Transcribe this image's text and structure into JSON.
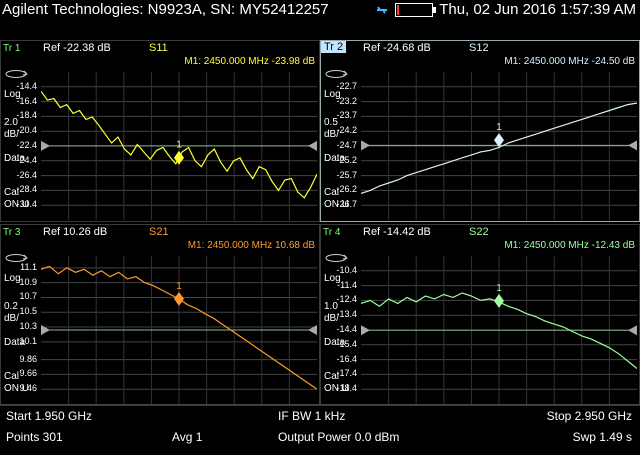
{
  "header": {
    "title": "Agilent Technologies: N9923A, SN: MY52412257",
    "datetime": "Thu, 02 Jun 2016 1:57:39 AM",
    "battery_level": 0.05
  },
  "traces": [
    {
      "id": "tr1",
      "label": "Tr 1",
      "ref": "Ref -22.38 dB",
      "meas": "S11",
      "color": "#ffff33",
      "marker": "M1: 2450.000 MHz  -23.98 dB",
      "scale": [
        "Log",
        "2.0",
        "dB/",
        "Data"
      ],
      "cal": [
        "Cal",
        "ON U"
      ],
      "yticks": [
        "-14.4",
        "-16.4",
        "-18.4",
        "-20.4",
        "-22.4",
        "-24.4",
        "-26.4",
        "-28.4",
        "-30.4"
      ],
      "ymin": -32.4,
      "ymax": -12.4,
      "ref_value": -22.38,
      "marker_value": -23.98,
      "points": [
        -15.0,
        -16.2,
        -16.0,
        -17.2,
        -16.8,
        -18.0,
        -17.6,
        -18.8,
        -18.5,
        -19.6,
        -20.8,
        -22.0,
        -21.2,
        -22.8,
        -23.6,
        -22.2,
        -23.2,
        -24.2,
        -23.0,
        -22.6,
        -23.8,
        -24.8,
        -23.2,
        -22.6,
        -24.4,
        -25.2,
        -23.6,
        -22.8,
        -24.6,
        -25.8,
        -24.4,
        -24.0,
        -25.6,
        -26.8,
        -25.2,
        -25.6,
        -27.2,
        -28.4,
        -27.0,
        -26.8,
        -28.6,
        -29.4,
        -28.0,
        -26.2
      ]
    },
    {
      "id": "tr2",
      "label": "Tr 2",
      "ref": "Ref -24.68 dB",
      "meas": "S12",
      "color": "#d8f0ff",
      "marker": "M1: 2450.000 MHz  -24.50 dB",
      "scale": [
        "Log",
        "0.5",
        "dB/",
        "Data"
      ],
      "cal": [
        "Cal",
        "ON U"
      ],
      "yticks": [
        "-22.7",
        "-23.2",
        "-23.7",
        "-24.2",
        "-24.7",
        "-25.2",
        "-25.7",
        "-26.2",
        "-26.7"
      ],
      "ymin": -27.2,
      "ymax": -22.2,
      "ref_value": -24.68,
      "marker_value": -24.5,
      "points": [
        -26.3,
        -26.2,
        -26.05,
        -25.95,
        -25.85,
        -25.7,
        -25.6,
        -25.5,
        -25.4,
        -25.3,
        -25.2,
        -25.1,
        -25.0,
        -24.9,
        -24.85,
        -24.75,
        -24.6,
        -24.5,
        -24.4,
        -24.3,
        -24.2,
        -24.1,
        -24.0,
        -23.9,
        -23.8,
        -23.7,
        -23.6,
        -23.5,
        -23.4,
        -23.3,
        -23.25
      ]
    },
    {
      "id": "tr3",
      "label": "Tr 3",
      "ref": "Ref 10.26 dB",
      "meas": "S21",
      "color": "#ff9a2a",
      "marker": "M1: 2450.000 MHz  10.68 dB",
      "scale": [
        "Log",
        "0.2",
        "dB/",
        "Data"
      ],
      "cal": [
        "Cal",
        "ON U"
      ],
      "yticks": [
        "11.1",
        "10.9",
        "10.7",
        "10.5",
        "10.3",
        "10.1",
        "9.86",
        "9.66",
        "9.46"
      ],
      "ymin": 9.26,
      "ymax": 11.26,
      "ref_value": 10.26,
      "marker_value": 10.68,
      "points": [
        11.08,
        11.12,
        11.02,
        11.1,
        11.04,
        11.08,
        11.0,
        11.06,
        10.98,
        11.04,
        10.95,
        10.98,
        10.9,
        10.86,
        10.8,
        10.74,
        10.68,
        10.6,
        10.55,
        10.48,
        10.42,
        10.34,
        10.26,
        10.18,
        10.1,
        10.02,
        9.94,
        9.86,
        9.78,
        9.7,
        9.62,
        9.54,
        9.46
      ]
    },
    {
      "id": "tr4",
      "label": "Tr 4",
      "ref": "Ref -14.42 dB",
      "meas": "S22",
      "color": "#9dff9d",
      "marker": "M1: 2450.000 MHz  -12.43 dB",
      "scale": [
        "Log",
        "1.0",
        "dB/",
        "Data"
      ],
      "cal": [
        "Cal",
        "ON U"
      ],
      "yticks": [
        "-10.4",
        "-11.4",
        "-12.4",
        "-13.4",
        "-14.4",
        "-15.4",
        "-16.4",
        "-17.4",
        "-18.4"
      ],
      "ymin": -19.4,
      "ymax": -9.4,
      "ref_value": -14.42,
      "marker_value": -12.43,
      "points": [
        -12.6,
        -12.4,
        -12.8,
        -12.3,
        -12.6,
        -12.2,
        -12.5,
        -12.1,
        -12.3,
        -12.0,
        -12.2,
        -11.9,
        -12.1,
        -12.4,
        -12.3,
        -12.5,
        -12.8,
        -13.0,
        -13.3,
        -13.5,
        -13.8,
        -14.0,
        -14.2,
        -14.5,
        -14.8,
        -15.0,
        -15.3,
        -15.6,
        -16.0,
        -16.5,
        -17.0
      ]
    }
  ],
  "footer": {
    "start": "Start 1.950 GHz",
    "ifbw": "IF BW 1 kHz",
    "stop": "Stop 2.950 GHz",
    "points": "Points 301",
    "avg": "Avg  1",
    "power": "Output Power 0.0 dBm",
    "sweep": "Swp 1.49 s"
  },
  "marker_label": "1"
}
